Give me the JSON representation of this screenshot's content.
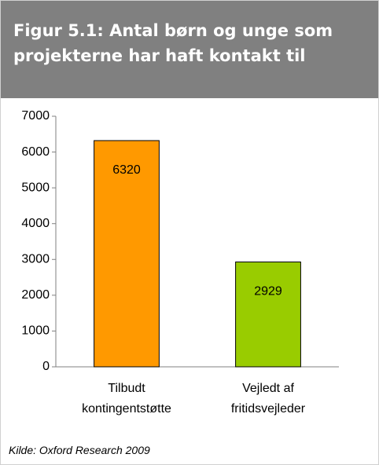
{
  "chart_data": {
    "type": "bar",
    "title": "Figur 5.1: Antal børn og unge som projekterne har haft kontakt til",
    "categories": [
      "Tilbudt kontingentstøtte",
      "Vejledt af fritidsvejleder"
    ],
    "values": [
      6320,
      2929
    ],
    "colors": [
      "#ff9900",
      "#99cc00"
    ],
    "ylim": [
      0,
      7000
    ],
    "yticks": [
      0,
      1000,
      2000,
      3000,
      4000,
      5000,
      6000,
      7000
    ],
    "grid": false,
    "source": "Kilde: Oxford Research 2009"
  }
}
